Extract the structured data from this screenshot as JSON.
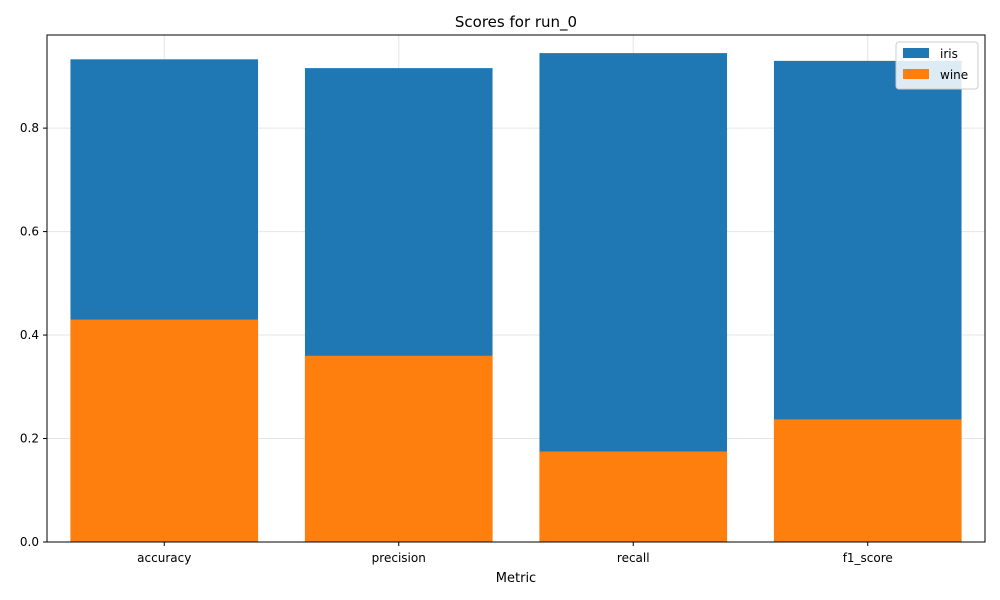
{
  "chart_data": {
    "type": "bar",
    "title": "Scores for run_0",
    "xlabel": "Metric",
    "ylabel": "",
    "categories": [
      "accuracy",
      "precision",
      "recall",
      "f1_score"
    ],
    "series": [
      {
        "name": "iris",
        "color": "#1f77b4",
        "values": [
          0.933,
          0.916,
          0.945,
          0.93
        ]
      },
      {
        "name": "wine",
        "color": "#ff7f0e",
        "values": [
          0.43,
          0.36,
          0.175,
          0.237
        ]
      }
    ],
    "yticks": [
      0.0,
      0.2,
      0.4,
      0.6,
      0.8
    ],
    "ytick_labels": [
      "0.0",
      "0.2",
      "0.4",
      "0.6",
      "0.8"
    ],
    "ylim": [
      0,
      0.98
    ],
    "grid": true,
    "legend_position": "top-right"
  }
}
